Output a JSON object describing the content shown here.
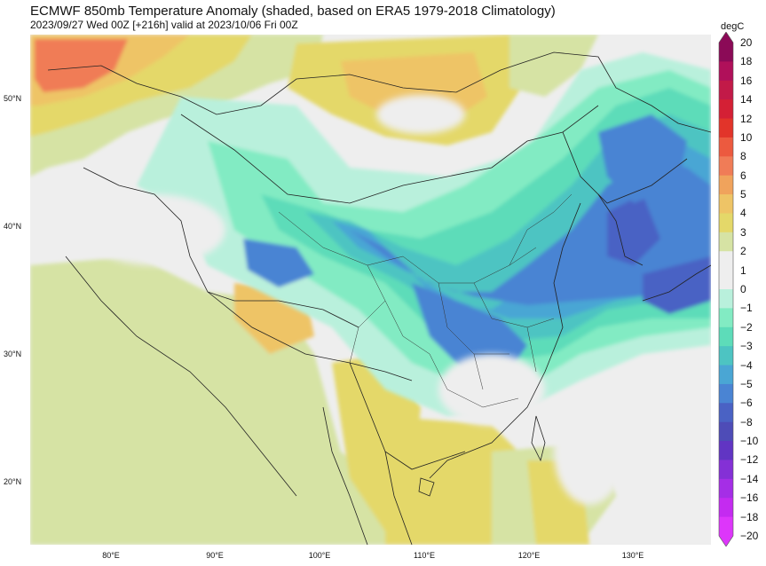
{
  "header": {
    "title": "ECMWF 850mb Temperature Anomaly (shaded, based on ERA5 1979-2018 Climatology)",
    "subtitle": "2023/09/27 Wed 00Z [+216h] valid at 2023/10/06 Fri 00Z"
  },
  "map": {
    "lat_labels": [
      "50°N",
      "40°N",
      "30°N",
      "20°N"
    ],
    "lon_labels": [
      "80°E",
      "90°E",
      "100°E",
      "110°E",
      "120°E",
      "130°E"
    ]
  },
  "colorbar": {
    "unit": "degC",
    "ticks": [
      "20",
      "18",
      "16",
      "14",
      "12",
      "10",
      "8",
      "6",
      "5",
      "4",
      "3",
      "2",
      "1",
      "0",
      "−1",
      "−2",
      "−3",
      "−4",
      "−5",
      "−6",
      "−8",
      "−10",
      "−12",
      "−14",
      "−16",
      "−18",
      "−20"
    ],
    "colors": [
      "#8b0a57",
      "#b0105a",
      "#c21a48",
      "#d42035",
      "#e2342a",
      "#ec5a3f",
      "#f07c57",
      "#f0a35c",
      "#eec466",
      "#e4d869",
      "#d6e3a4",
      "#eeeeee",
      "#eeeeee",
      "#b9f0dc",
      "#82ebc3",
      "#5ddcb9",
      "#4dc4c2",
      "#4aa6d4",
      "#4a84d3",
      "#4a62c4",
      "#4e4cb7",
      "#6135c3",
      "#8430d6",
      "#a52ee6",
      "#c42bf0",
      "#dd36fa"
    ],
    "cap_top": "#8b0a57",
    "cap_bottom": "#dd36fa"
  },
  "palette": {
    "neutral": "#eeeeee",
    "warm_light": "#d6e3a4",
    "warm_2": "#e4d869",
    "warm_3": "#eec466",
    "warm_4": "#f0a35c",
    "warm_5": "#f07c57",
    "cold_1": "#b9f0dc",
    "cold_2": "#82ebc3",
    "cold_3": "#5ddcb9",
    "cold_4": "#4dc4c2",
    "cold_5": "#4aa6d4",
    "cold_6": "#4a84d3",
    "border": "#222222"
  }
}
